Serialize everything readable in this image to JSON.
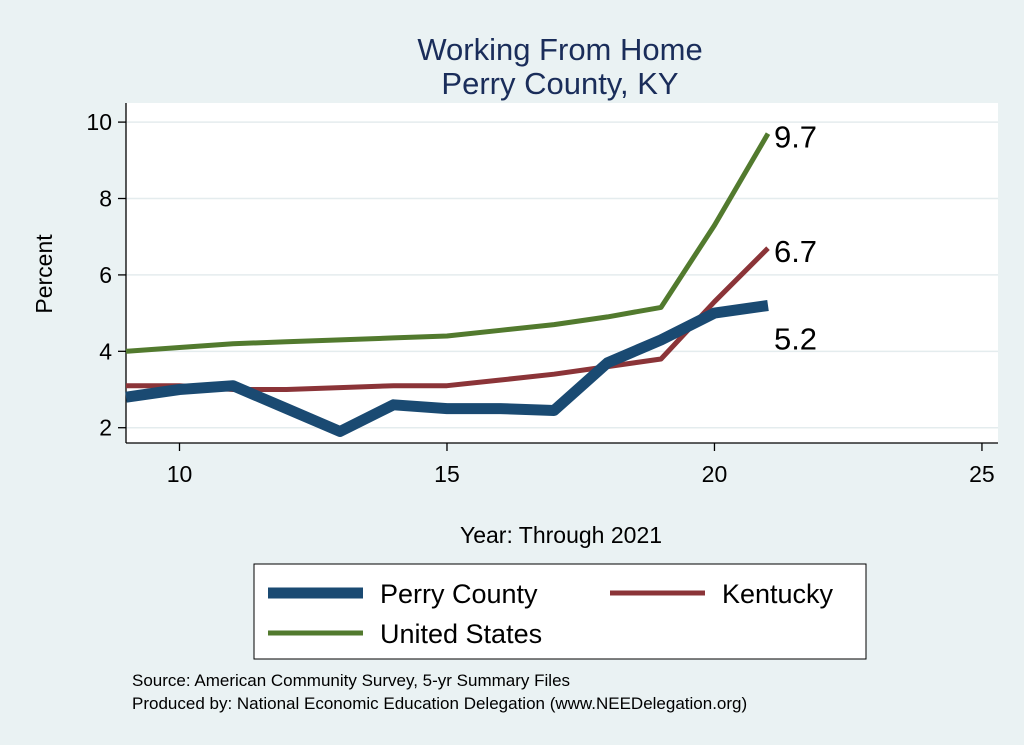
{
  "chart_data": {
    "type": "line",
    "title": [
      "Working From Home",
      "Perry County, KY"
    ],
    "xlabel": "Year: Through 2021",
    "ylabel": "Percent",
    "xlim": [
      9,
      25.3
    ],
    "ylim": [
      1.6,
      10.5
    ],
    "x_ticks": [
      10,
      15,
      20,
      25
    ],
    "y_ticks": [
      2,
      4,
      6,
      8,
      10
    ],
    "grid": true,
    "legend_position": "bottom",
    "x": [
      9,
      10,
      11,
      12,
      13,
      14,
      15,
      16,
      17,
      18,
      19,
      20,
      21
    ],
    "series": [
      {
        "name": "Perry County",
        "color": "#1a4a72",
        "values": [
          2.8,
          3.0,
          3.1,
          2.5,
          1.9,
          2.6,
          2.5,
          2.5,
          2.45,
          3.7,
          4.3,
          5.0,
          5.2
        ],
        "end_label": "5.2"
      },
      {
        "name": "Kentucky",
        "color": "#8b3438",
        "values": [
          3.1,
          3.1,
          3.0,
          3.0,
          3.05,
          3.1,
          3.1,
          3.25,
          3.4,
          3.6,
          3.8,
          5.3,
          6.7
        ],
        "end_label": "6.7"
      },
      {
        "name": "United States",
        "color": "#527a2e",
        "values": [
          4.0,
          4.1,
          4.2,
          4.25,
          4.3,
          4.35,
          4.4,
          4.55,
          4.7,
          4.9,
          5.15,
          7.3,
          9.7
        ],
        "end_label": "9.7"
      }
    ],
    "notes": [
      "Source: American Community Survey, 5-yr Summary Files",
      "Produced by: National Economic Education Delegation (www.NEEDelegation.org)"
    ]
  }
}
